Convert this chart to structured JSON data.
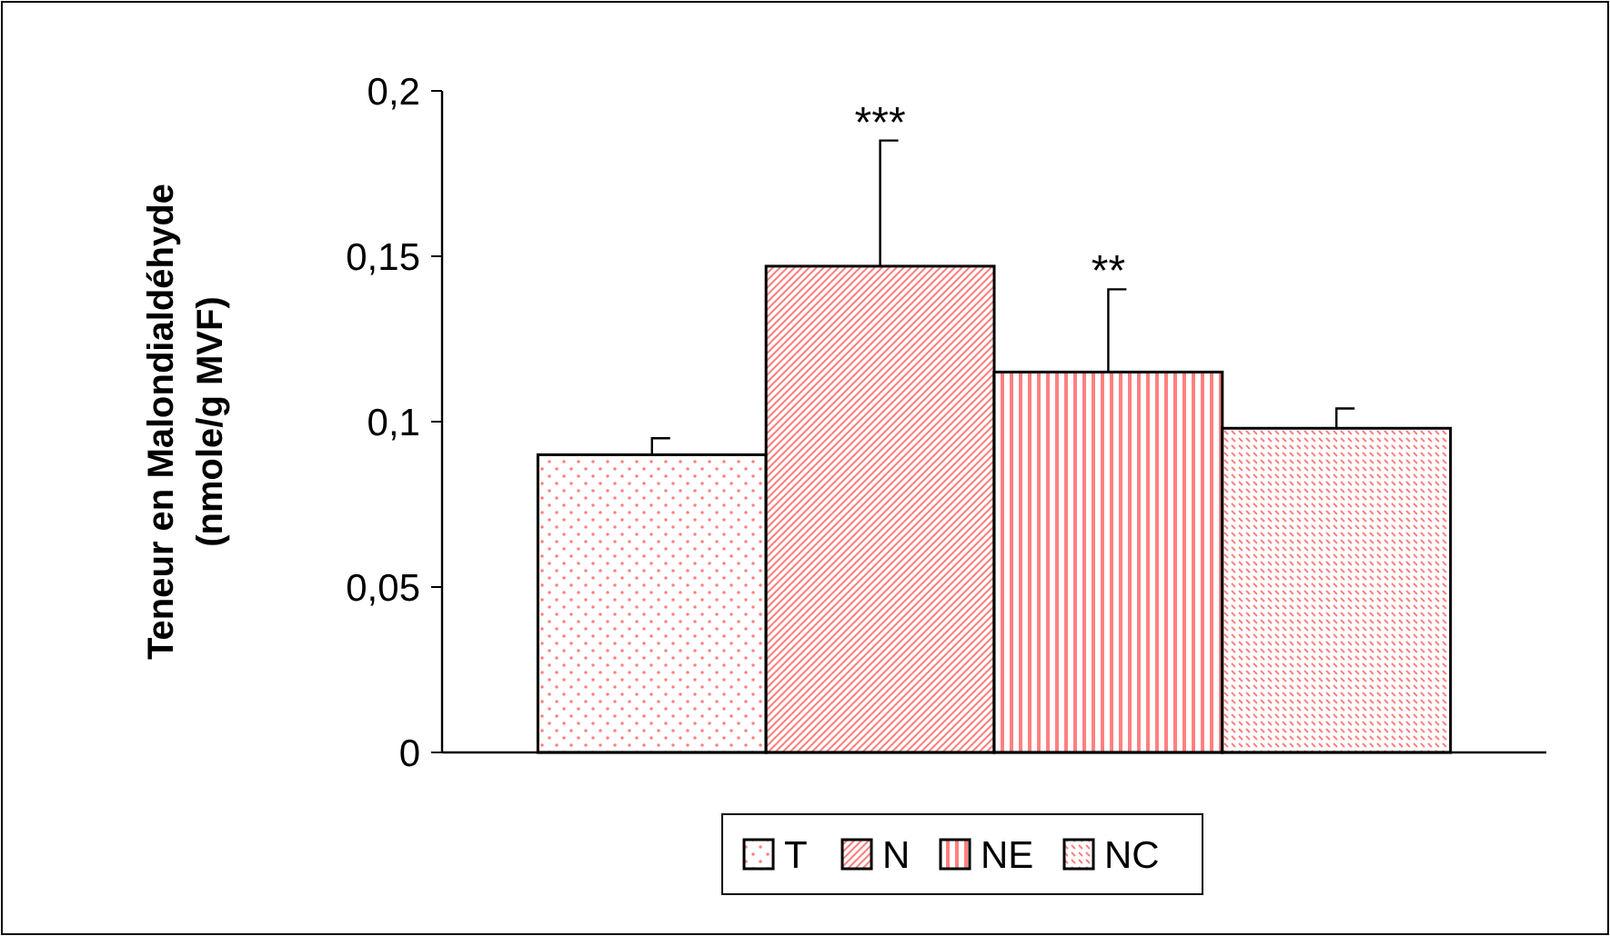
{
  "chart_data": {
    "type": "bar",
    "ylabel": "Teneur en Malondialdéhyde\n(nmole/g MVF)",
    "categories": [
      null
    ],
    "series": [
      {
        "name": "T",
        "color": "#ff8080",
        "values": [
          0.09
        ],
        "errors": [
          [
            0.09,
            0.095
          ]
        ]
      },
      {
        "name": "N",
        "color": "#ff8080",
        "values": [
          0.147
        ],
        "errors": [
          [
            0.147,
            0.185
          ]
        ]
      },
      {
        "name": "NE",
        "color": "#ff8080",
        "values": [
          0.115
        ],
        "errors": [
          [
            0.115,
            0.14
          ]
        ]
      },
      {
        "name": "NC",
        "color": "#ff8080",
        "values": [
          0.098
        ],
        "errors": [
          [
            0.098,
            0.104
          ]
        ]
      }
    ],
    "ylim": [
      0,
      0.2
    ],
    "yticks": [
      0,
      {
        "value": 0.05,
        "label": "0,05"
      },
      {
        "value": 0.1,
        "label": "0,1"
      },
      {
        "value": 0.15,
        "label": "0,15"
      },
      {
        "value": 0.2,
        "label": "0,2"
      }
    ],
    "annotations": [
      {
        "text": "***",
        "y": 0.185
      },
      {
        "text": "**",
        "y": 0.14
      }
    ],
    "grid": false,
    "legend": "bottom"
  }
}
